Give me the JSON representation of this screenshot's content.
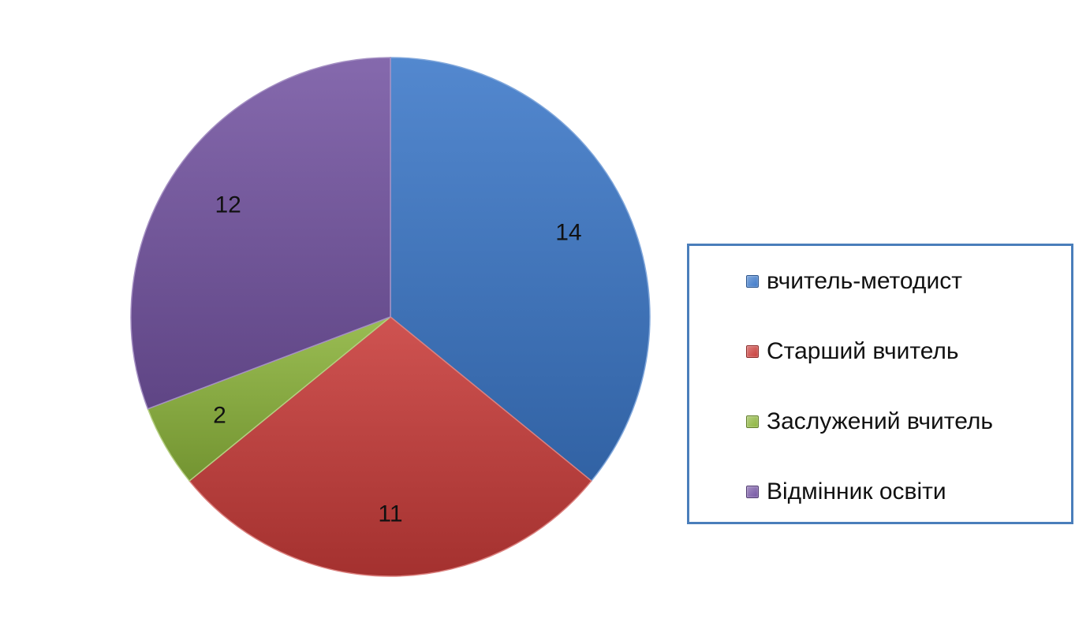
{
  "chart_data": {
    "type": "pie",
    "categories": [
      "вчитель-методист",
      "Старший вчитель",
      "Заслужений вчитель",
      "Відмінник освіти"
    ],
    "values": [
      14,
      11,
      2,
      12
    ],
    "data_labels": [
      "14",
      "11",
      "2",
      "12"
    ],
    "colors": [
      "#3c78c8",
      "#c83c39",
      "#8cb43c",
      "#7454a2"
    ],
    "start_angle_deg": 0,
    "direction": "clockwise",
    "legend_position": "right"
  },
  "legend": {
    "items": [
      {
        "label": "вчитель-методист",
        "color": "#3c78c8"
      },
      {
        "label": "Старший вчитель",
        "color": "#c83c39"
      },
      {
        "label": "Заслужений вчитель",
        "color": "#8cb43c"
      },
      {
        "label": "Відмінник освіти",
        "color": "#7454a2"
      }
    ]
  }
}
